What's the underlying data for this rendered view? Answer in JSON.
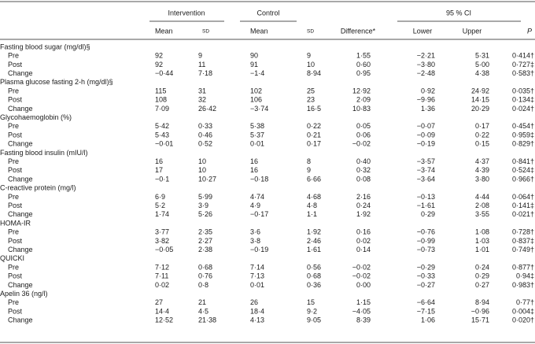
{
  "header": {
    "groups": [
      "Intervention",
      "Control",
      "95 % CI"
    ],
    "columns": [
      "Mean",
      "SD",
      "Mean",
      "SD",
      "Difference*",
      "Lower",
      "Upper",
      "P"
    ]
  },
  "sections": [
    {
      "title": "Fasting blood sugar (mg/dl)§",
      "rows": [
        [
          "Pre",
          "92",
          "9",
          "90",
          "9",
          "1·55",
          "−2·21",
          "5·31",
          "0·414†"
        ],
        [
          "Post",
          "92",
          "11",
          "91",
          "10",
          "0·60",
          "−3·80",
          "5·00",
          "0·727‡"
        ],
        [
          "Change",
          "−0·44",
          "7·18",
          "−1·4",
          "8·94",
          "0·95",
          "−2·48",
          "4·38",
          "0·583†"
        ]
      ]
    },
    {
      "title": "Plasma glucose fasting 2-h (mg/dl)§",
      "rows": [
        [
          "Pre",
          "115",
          "31",
          "102",
          "25",
          "12·92",
          "0·92",
          "24·92",
          "0·035†"
        ],
        [
          "Post",
          "108",
          "32",
          "106",
          "23",
          "2·09",
          "−9·96",
          "14·15",
          "0·134‡"
        ],
        [
          "Change",
          "7·09",
          "26·42",
          "−3·74",
          "16·5",
          "10·83",
          "1·36",
          "20·29",
          "0·024†"
        ]
      ]
    },
    {
      "title": "Glycohaemoglobin (%)",
      "rows": [
        [
          "Pre",
          "5·42",
          "0·33",
          "5·38",
          "0·22",
          "0·05",
          "−0·07",
          "0·17",
          "0·454†"
        ],
        [
          "Post",
          "5·43",
          "0·46",
          "5·37",
          "0·21",
          "0·06",
          "−0·09",
          "0·22",
          "0·959‡"
        ],
        [
          "Change",
          "−0·01",
          "0·52",
          "0·01",
          "0·17",
          "−0·02",
          "−0·19",
          "0·15",
          "0·829†"
        ]
      ]
    },
    {
      "title": "Fasting blood insulin (mIU/l)",
      "rows": [
        [
          "Pre",
          "16",
          "10",
          "16",
          "8",
          "0·40",
          "−3·57",
          "4·37",
          "0·841†"
        ],
        [
          "Post",
          "17",
          "10",
          "16",
          "9",
          "0·32",
          "−3·74",
          "4·39",
          "0·524‡"
        ],
        [
          "Change",
          "−0·1",
          "10·27",
          "−0·18",
          "6·66",
          "0·08",
          "−3·64",
          "3·80",
          "0·966†"
        ]
      ]
    },
    {
      "title": "C-reactive protein (mg/l)",
      "rows": [
        [
          "Pre",
          "6·9",
          "5·99",
          "4·74",
          "4·68",
          "2·16",
          "−0·13",
          "4·44",
          "0·064†"
        ],
        [
          "Post",
          "5·2",
          "3·9",
          "4·9",
          "4·8",
          "0·24",
          "−1·61",
          "2·08",
          "0·141‡"
        ],
        [
          "Change",
          "1·74",
          "5·26",
          "−0·17",
          "1·1",
          "1·92",
          "0·29",
          "3·55",
          "0·021†"
        ]
      ]
    },
    {
      "title": "HOMA-IR",
      "rows": [
        [
          "Pre",
          "3·77",
          "2·35",
          "3·6",
          "1·92",
          "0·16",
          "−0·76",
          "1·08",
          "0·728†"
        ],
        [
          "Post",
          "3·82",
          "2·27",
          "3·8",
          "2·46",
          "0·02",
          "−0·99",
          "1·03",
          "0·837‡"
        ],
        [
          "Change",
          "−0·05",
          "2·38",
          "−0·19",
          "1·61",
          "0·14",
          "−0·73",
          "1·01",
          "0·749†"
        ]
      ]
    },
    {
      "title": "QUICKI",
      "rows": [
        [
          "Pre",
          "7·12",
          "0·68",
          "7·14",
          "0·56",
          "−0·02",
          "−0·29",
          "0·24",
          "0·877†"
        ],
        [
          "Post",
          "7·11",
          "0·76",
          "7·13",
          "0·68",
          "−0·02",
          "−0·33",
          "0·29",
          "0·94‡"
        ],
        [
          "Change",
          "0·02",
          "0·8",
          "0·01",
          "0·36",
          "0·00",
          "−0·27",
          "0·27",
          "0·983†"
        ]
      ]
    },
    {
      "title": "Apelin 36 (ng/l)",
      "rows": [
        [
          "Pre",
          "27",
          "21",
          "26",
          "15",
          "1·15",
          "−6·64",
          "8·94",
          "0·77†"
        ],
        [
          "Post",
          "14·4",
          "4·5",
          "18·4",
          "9·2",
          "−4·05",
          "−7·15",
          "−0·96",
          "0·004‡"
        ],
        [
          "Change",
          "12·52",
          "21·38",
          "4·13",
          "9·05",
          "8·39",
          "1·06",
          "15·71",
          "0·020†"
        ]
      ]
    }
  ]
}
